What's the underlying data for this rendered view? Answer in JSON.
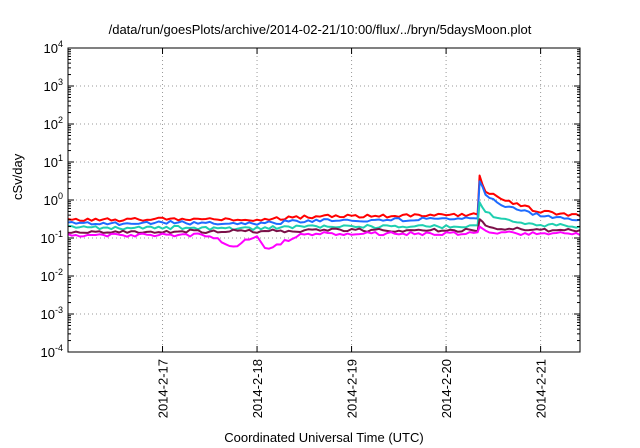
{
  "chart_data": {
    "type": "line",
    "title": "/data/run/goesPlots/archive/2014-02-21/10:00/flux/../bryn/5daysMoon.plot",
    "xlabel": "Coordinated Universal Time (UTC)",
    "ylabel": "cSv/day",
    "yscale": "log",
    "ylim": [
      0.0001,
      10000
    ],
    "y_ticks": [
      {
        "value": 0.0001,
        "base": "10",
        "exp": "-4"
      },
      {
        "value": 0.001,
        "base": "10",
        "exp": "-3"
      },
      {
        "value": 0.01,
        "base": "10",
        "exp": "-2"
      },
      {
        "value": 0.1,
        "base": "10",
        "exp": "-1"
      },
      {
        "value": 1,
        "base": "10",
        "exp": "0"
      },
      {
        "value": 10,
        "base": "10",
        "exp": "1"
      },
      {
        "value": 100,
        "base": "10",
        "exp": "2"
      },
      {
        "value": 1000,
        "base": "10",
        "exp": "3"
      },
      {
        "value": 10000,
        "base": "10",
        "exp": "4"
      }
    ],
    "xlim": [
      "2014-02-16 00:00",
      "2014-02-21 10:00"
    ],
    "x_ticks": [
      {
        "value": "2014-02-17 00:00",
        "label": "2014-2-17"
      },
      {
        "value": "2014-02-18 00:00",
        "label": "2014-2-18"
      },
      {
        "value": "2014-02-19 00:00",
        "label": "2014-2-19"
      },
      {
        "value": "2014-02-20 00:00",
        "label": "2014-2-20"
      },
      {
        "value": "2014-02-21 00:00",
        "label": "2014-2-21"
      }
    ],
    "grid": true,
    "legend": "none",
    "series": [
      {
        "color": "#ff0000",
        "points": [
          [
            "2014-02-16 00:00",
            0.3
          ],
          [
            "2014-02-16 12:00",
            0.3
          ],
          [
            "2014-02-17 00:00",
            0.32
          ],
          [
            "2014-02-17 12:00",
            0.3
          ],
          [
            "2014-02-18 00:00",
            0.3
          ],
          [
            "2014-02-18 12:00",
            0.36
          ],
          [
            "2014-02-19 00:00",
            0.38
          ],
          [
            "2014-02-19 12:00",
            0.38
          ],
          [
            "2014-02-20 00:00",
            0.4
          ],
          [
            "2014-02-20 08:00",
            0.42
          ],
          [
            "2014-02-20 08:30",
            4.0
          ],
          [
            "2014-02-20 10:00",
            1.8
          ],
          [
            "2014-02-20 13:00",
            1.2
          ],
          [
            "2014-02-20 18:00",
            0.75
          ],
          [
            "2014-02-21 00:00",
            0.5
          ],
          [
            "2014-02-21 06:00",
            0.42
          ],
          [
            "2014-02-21 10:00",
            0.38
          ]
        ]
      },
      {
        "color": "#1e6bff",
        "points": [
          [
            "2014-02-16 00:00",
            0.24
          ],
          [
            "2014-02-16 12:00",
            0.24
          ],
          [
            "2014-02-17 00:00",
            0.26
          ],
          [
            "2014-02-17 12:00",
            0.24
          ],
          [
            "2014-02-18 00:00",
            0.24
          ],
          [
            "2014-02-18 12:00",
            0.28
          ],
          [
            "2014-02-19 00:00",
            0.3
          ],
          [
            "2014-02-19 12:00",
            0.3
          ],
          [
            "2014-02-20 00:00",
            0.32
          ],
          [
            "2014-02-20 08:00",
            0.32
          ],
          [
            "2014-02-20 08:30",
            3.2
          ],
          [
            "2014-02-20 10:00",
            1.3
          ],
          [
            "2014-02-20 13:00",
            0.85
          ],
          [
            "2014-02-20 18:00",
            0.55
          ],
          [
            "2014-02-21 00:00",
            0.4
          ],
          [
            "2014-02-21 06:00",
            0.33
          ],
          [
            "2014-02-21 10:00",
            0.3
          ]
        ]
      },
      {
        "color": "#1fcfb0",
        "points": [
          [
            "2014-02-16 00:00",
            0.19
          ],
          [
            "2014-02-16 12:00",
            0.18
          ],
          [
            "2014-02-17 00:00",
            0.19
          ],
          [
            "2014-02-17 12:00",
            0.18
          ],
          [
            "2014-02-18 00:00",
            0.18
          ],
          [
            "2014-02-18 12:00",
            0.2
          ],
          [
            "2014-02-19 00:00",
            0.2
          ],
          [
            "2014-02-19 12:00",
            0.2
          ],
          [
            "2014-02-20 00:00",
            0.2
          ],
          [
            "2014-02-20 08:00",
            0.2
          ],
          [
            "2014-02-20 08:30",
            0.95
          ],
          [
            "2014-02-20 10:00",
            0.5
          ],
          [
            "2014-02-20 13:00",
            0.32
          ],
          [
            "2014-02-20 18:00",
            0.25
          ],
          [
            "2014-02-21 00:00",
            0.22
          ],
          [
            "2014-02-21 06:00",
            0.21
          ],
          [
            "2014-02-21 10:00",
            0.2
          ]
        ]
      },
      {
        "color": "#7b1048",
        "points": [
          [
            "2014-02-16 00:00",
            0.15
          ],
          [
            "2014-02-16 12:00",
            0.15
          ],
          [
            "2014-02-17 00:00",
            0.15
          ],
          [
            "2014-02-17 12:00",
            0.15
          ],
          [
            "2014-02-18 00:00",
            0.15
          ],
          [
            "2014-02-18 12:00",
            0.16
          ],
          [
            "2014-02-19 00:00",
            0.16
          ],
          [
            "2014-02-19 12:00",
            0.16
          ],
          [
            "2014-02-20 00:00",
            0.16
          ],
          [
            "2014-02-20 08:00",
            0.16
          ],
          [
            "2014-02-20 08:30",
            0.3
          ],
          [
            "2014-02-20 10:00",
            0.22
          ],
          [
            "2014-02-20 13:00",
            0.18
          ],
          [
            "2014-02-20 18:00",
            0.17
          ],
          [
            "2014-02-21 00:00",
            0.16
          ],
          [
            "2014-02-21 06:00",
            0.16
          ],
          [
            "2014-02-21 10:00",
            0.16
          ]
        ]
      },
      {
        "color": "#ff00ff",
        "points": [
          [
            "2014-02-16 00:00",
            0.12
          ],
          [
            "2014-02-16 12:00",
            0.12
          ],
          [
            "2014-02-17 00:00",
            0.12
          ],
          [
            "2014-02-17 12:00",
            0.12
          ],
          [
            "2014-02-17 18:00",
            0.06
          ],
          [
            "2014-02-18 00:00",
            0.12
          ],
          [
            "2014-02-18 02:00",
            0.05
          ],
          [
            "2014-02-18 12:00",
            0.13
          ],
          [
            "2014-02-19 00:00",
            0.13
          ],
          [
            "2014-02-19 12:00",
            0.13
          ],
          [
            "2014-02-20 00:00",
            0.13
          ],
          [
            "2014-02-20 08:00",
            0.13
          ],
          [
            "2014-02-20 08:30",
            0.22
          ],
          [
            "2014-02-20 10:00",
            0.16
          ],
          [
            "2014-02-20 13:00",
            0.14
          ],
          [
            "2014-02-20 18:00",
            0.13
          ],
          [
            "2014-02-21 00:00",
            0.13
          ],
          [
            "2014-02-21 06:00",
            0.13
          ],
          [
            "2014-02-21 10:00",
            0.12
          ]
        ]
      }
    ]
  }
}
